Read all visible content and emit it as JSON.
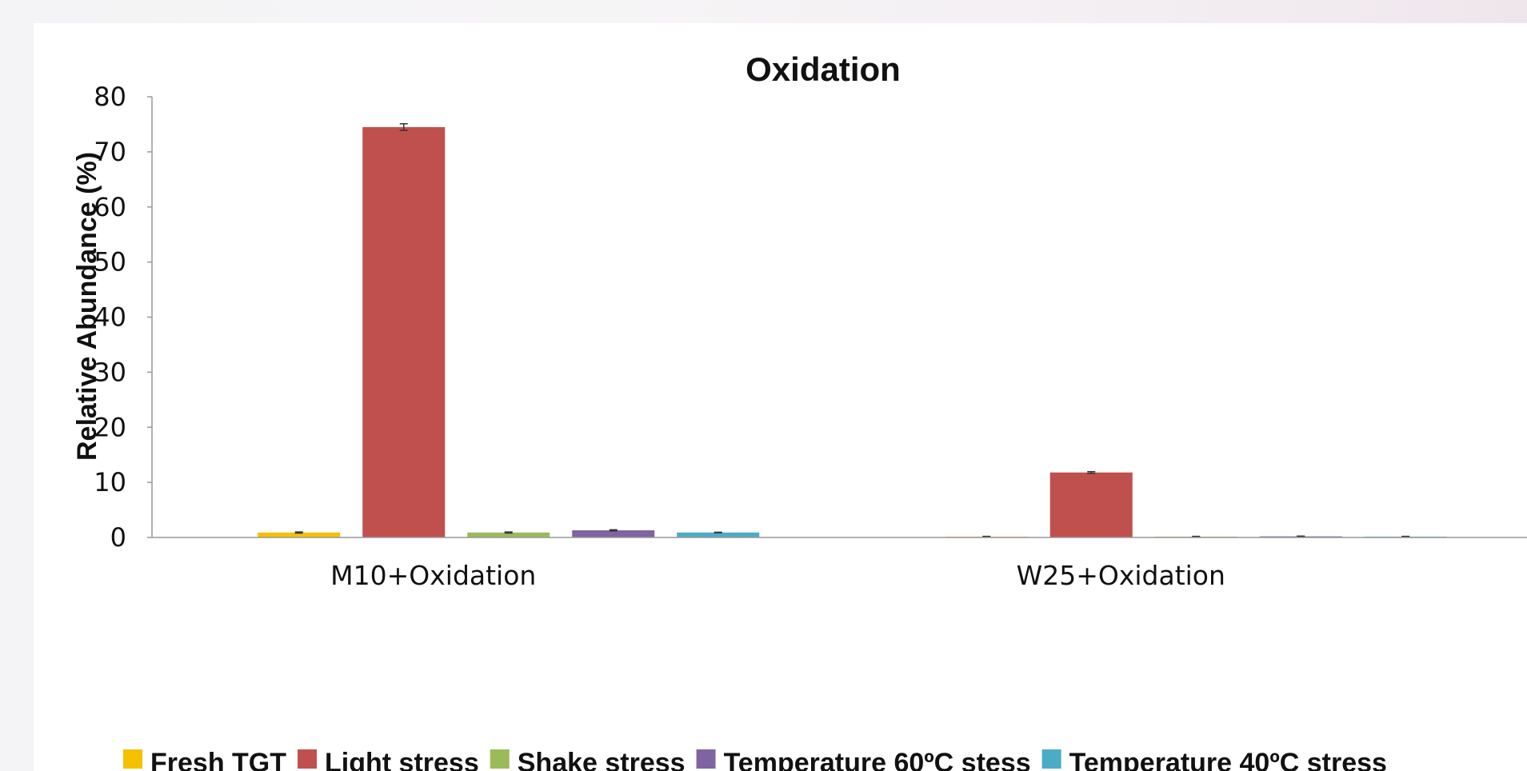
{
  "chart_data": {
    "type": "bar",
    "title": "Oxidation",
    "xlabel": "",
    "ylabel": "Relative Abundance  (%)",
    "ylim": [
      0,
      80
    ],
    "yticks": [
      0,
      10,
      20,
      30,
      40,
      50,
      60,
      70,
      80
    ],
    "grid": false,
    "legend_position": "bottom",
    "categories": [
      "M10+Oxidation",
      "W25+Oxidation"
    ],
    "series": [
      {
        "name": "Fresh TGT",
        "color": "#f5c000",
        "values": [
          0.9,
          0.15
        ],
        "errors": [
          0.1,
          0.05
        ]
      },
      {
        "name": "Light stress",
        "color": "#c0504d",
        "values": [
          74.5,
          11.8
        ],
        "errors": [
          0.6,
          0.15
        ]
      },
      {
        "name": "Shake stress",
        "color": "#9bbb59",
        "values": [
          0.9,
          0.15
        ],
        "errors": [
          0.1,
          0.05
        ]
      },
      {
        "name": "Temperature 60ºC stess",
        "color": "#8064a2",
        "values": [
          1.3,
          0.2
        ],
        "errors": [
          0.1,
          0.05
        ]
      },
      {
        "name": "Temperature 40ºC stress",
        "color": "#4bacc6",
        "values": [
          0.9,
          0.15
        ],
        "errors": [
          0.05,
          0.05
        ]
      }
    ]
  }
}
